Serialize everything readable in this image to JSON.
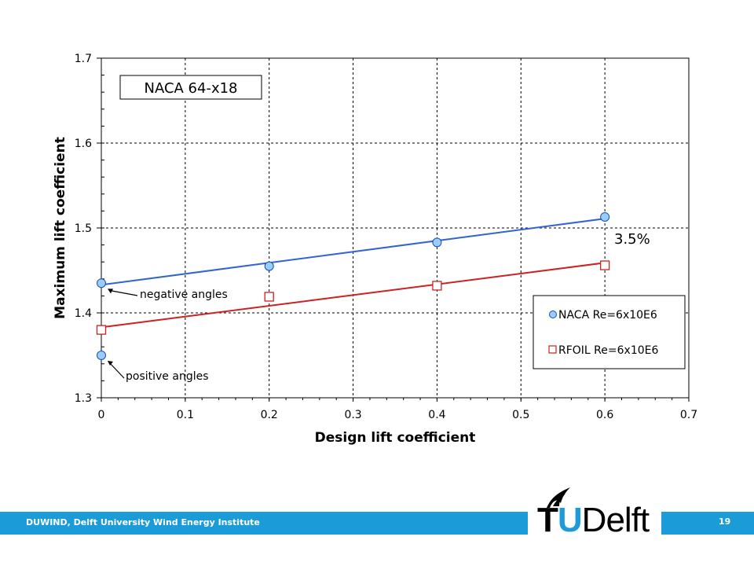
{
  "chart_data": {
    "type": "scatter",
    "title": "NACA 64-x18",
    "xlabel": "Design lift coefficient",
    "ylabel": "Maximum lift coefficient",
    "xlim": [
      0,
      0.7
    ],
    "ylim": [
      1.3,
      1.7
    ],
    "x_ticks": [
      "0",
      "0.1",
      "0.2",
      "0.3",
      "0.4",
      "0.5",
      "0.6",
      "0.7"
    ],
    "y_ticks": [
      "1.3",
      "1.4",
      "1.5",
      "1.6",
      "1.7"
    ],
    "grid": true,
    "legend_position": "right",
    "series": [
      {
        "name": "NACA Re=6x10E6",
        "marker": "circle",
        "color": "#99ccff",
        "line_color": "#3366cc",
        "points": [
          {
            "x": 0.0,
            "y": 1.435
          },
          {
            "x": 0.0,
            "y": 1.35
          },
          {
            "x": 0.2,
            "y": 1.455
          },
          {
            "x": 0.4,
            "y": 1.483
          },
          {
            "x": 0.6,
            "y": 1.513
          }
        ],
        "trend": [
          [
            0.0,
            1.433
          ],
          [
            0.6,
            1.511
          ]
        ]
      },
      {
        "name": "RFOIL Re=6x10E6",
        "marker": "square",
        "color": "#cc2222",
        "line_color": "#cc2222",
        "points": [
          {
            "x": 0.0,
            "y": 1.38
          },
          {
            "x": 0.2,
            "y": 1.419
          },
          {
            "x": 0.4,
            "y": 1.432
          },
          {
            "x": 0.6,
            "y": 1.456
          }
        ],
        "trend": [
          [
            0.0,
            1.383
          ],
          [
            0.6,
            1.459
          ]
        ]
      }
    ],
    "annotations": [
      {
        "text": "negative angles",
        "target": {
          "x": 0.0,
          "y": 1.433
        }
      },
      {
        "text": "positive angles",
        "target": {
          "x": 0.0,
          "y": 1.35
        }
      },
      {
        "text": "3.5%"
      }
    ]
  },
  "footer": {
    "institute": "DUWIND, Delft University Wind Energy Institute",
    "page_number": "19",
    "logo_tu": "TU",
    "logo_delft": "Delft"
  }
}
